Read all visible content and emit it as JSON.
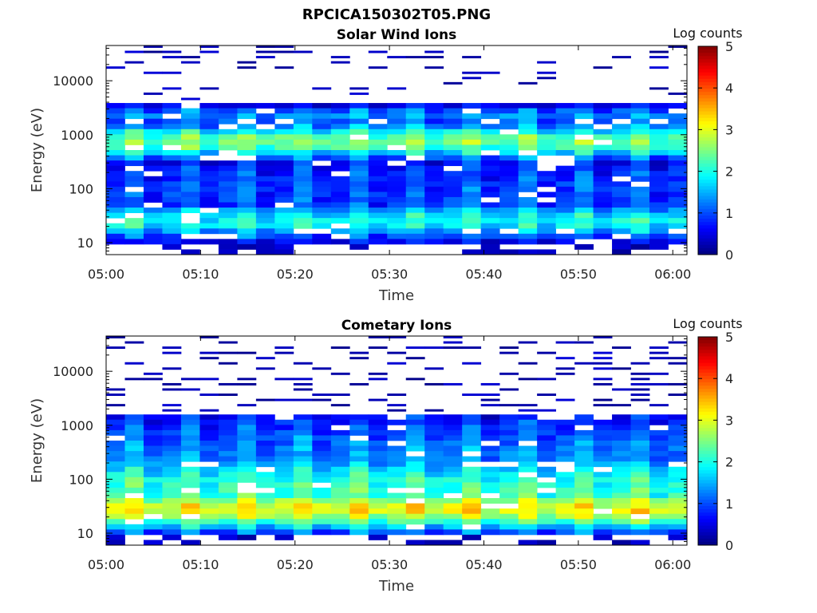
{
  "figure_title": "RPCICA150302T05.PNG",
  "colors": {
    "colormap": [
      "#00007f",
      "#0000ff",
      "#007fff",
      "#00ffff",
      "#7fff7f",
      "#ffff00",
      "#ff7f00",
      "#ff0000",
      "#7f0000"
    ],
    "background": "#ffffff",
    "axes": "#000000"
  },
  "chart_data": [
    {
      "type": "heatmap",
      "title": "Solar Wind Ions",
      "xlabel": "Time",
      "ylabel": "Energy (eV)",
      "yscale": "log",
      "ylim": [
        6,
        45000
      ],
      "xlim_minutes": [
        0,
        61.5
      ],
      "x_ticks": [
        "05:00",
        "05:10",
        "05:20",
        "05:30",
        "05:40",
        "05:50",
        "06:00"
      ],
      "y_ticks": [
        "10",
        "100",
        "1000",
        "10000"
      ],
      "colorbar": {
        "label": "Log counts",
        "ticks": [
          "0",
          "1",
          "2",
          "3",
          "4",
          "5"
        ],
        "range": [
          0,
          5
        ]
      },
      "time_bins": 31,
      "energy_bins": 40,
      "profile": {
        "peaks": [
          {
            "energy_eV": 25,
            "log_counts": 1.9,
            "width_bins": 2.5
          },
          {
            "energy_eV": 90,
            "log_counts": 0.9,
            "width_bins": 6
          },
          {
            "energy_eV": 750,
            "log_counts": 2.4,
            "width_bins": 2.5
          },
          {
            "energy_eV": 2200,
            "log_counts": 1.3,
            "width_bins": 1.5
          }
        ],
        "sparse_above_eV": 3500,
        "sparse_level": 0.15
      }
    },
    {
      "type": "heatmap",
      "title": "Cometary Ions",
      "xlabel": "Time",
      "ylabel": "Energy (eV)",
      "yscale": "log",
      "ylim": [
        6,
        45000
      ],
      "xlim_minutes": [
        0,
        61.5
      ],
      "x_ticks": [
        "05:00",
        "05:10",
        "05:20",
        "05:30",
        "05:40",
        "05:50",
        "06:00"
      ],
      "y_ticks": [
        "10",
        "100",
        "1000",
        "10000"
      ],
      "colorbar": {
        "label": "Log counts",
        "ticks": [
          "0",
          "1",
          "2",
          "3",
          "4",
          "5"
        ],
        "range": [
          0,
          5
        ]
      },
      "time_bins": 31,
      "energy_bins": 40,
      "profile": {
        "peaks": [
          {
            "energy_eV": 28,
            "log_counts": 3.0,
            "width_bins": 3
          },
          {
            "energy_eV": 60,
            "log_counts": 2.1,
            "width_bins": 6
          },
          {
            "energy_eV": 300,
            "log_counts": 1.2,
            "width_bins": 6
          }
        ],
        "sparse_above_eV": 1500,
        "sparse_level": 0.3
      }
    }
  ]
}
